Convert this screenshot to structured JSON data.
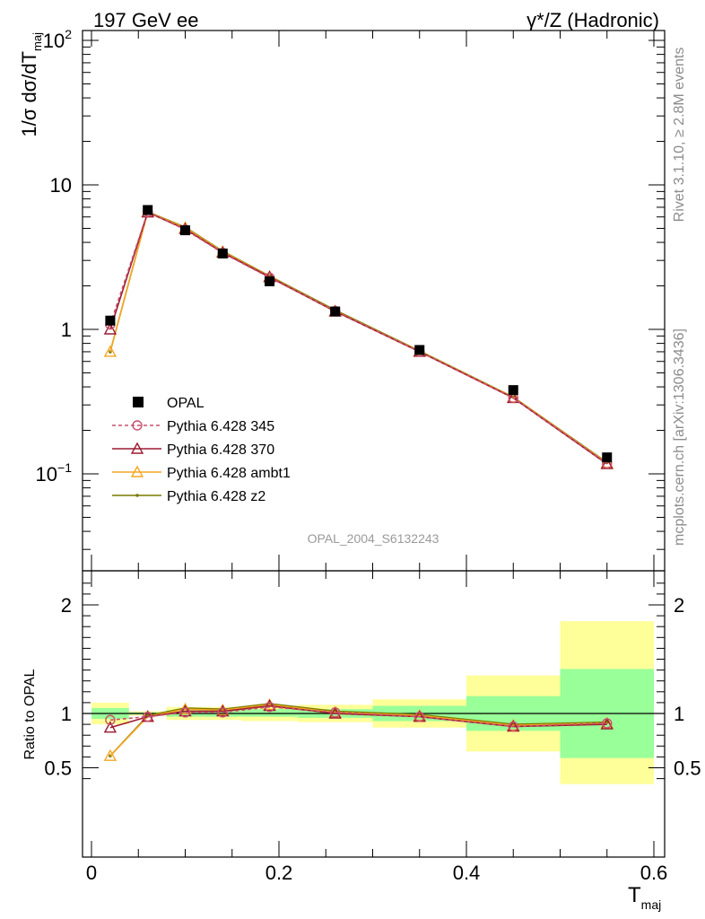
{
  "header": {
    "left": "197 GeV ee",
    "right": "γ*/Z (Hadronic)"
  },
  "side_text": {
    "rivet": "Rivet 3.1.10, ≥ 2.8M events",
    "mcplots": "mcplots.cern.ch [arXiv:1306.3436]"
  },
  "analysis_id": "OPAL_2004_S6132243",
  "chart_data": [
    {
      "panel": "main",
      "type": "line",
      "ylabel_main": "1/σ dσ/dT",
      "ylabel_sub": "maj",
      "yscale": "log",
      "ylim": [
        0.025,
        120
      ],
      "xlim": [
        -0.02,
        0.6
      ],
      "yticks": [
        {
          "value": 100,
          "base": "10",
          "exp": "2"
        },
        {
          "value": 10,
          "base": "10",
          "exp": ""
        },
        {
          "value": 1,
          "base": "1",
          "exp": ""
        },
        {
          "value": 0.1,
          "base": "10",
          "exp": "−1"
        }
      ],
      "legend_position": "middle-left",
      "data": {
        "name": "OPAL",
        "x": [
          0.02,
          0.06,
          0.1,
          0.14,
          0.19,
          0.26,
          0.35,
          0.45,
          0.55
        ],
        "y": [
          1.15,
          6.7,
          4.85,
          3.35,
          2.15,
          1.33,
          0.72,
          0.38,
          0.13
        ],
        "bin_edges": [
          0.0,
          0.04,
          0.08,
          0.12,
          0.16,
          0.22,
          0.3,
          0.4,
          0.5,
          0.6
        ]
      },
      "series": [
        {
          "name": "Pythia 6.428 345",
          "color": "#c8506e",
          "dash": "4,3",
          "marker": "circle",
          "y": [
            1.08,
            6.5,
            4.9,
            3.38,
            2.28,
            1.34,
            0.7,
            0.335,
            0.118
          ]
        },
        {
          "name": "Pythia 6.428 370",
          "color": "#9b1b30",
          "dash": "",
          "marker": "triangle",
          "y": [
            1.0,
            6.45,
            4.95,
            3.4,
            2.3,
            1.33,
            0.7,
            0.335,
            0.117
          ]
        },
        {
          "name": "Pythia 6.428 ambt1",
          "color": "#f5a623",
          "dash": "",
          "marker": "triangle",
          "y": [
            0.7,
            6.48,
            5.05,
            3.45,
            2.32,
            1.34,
            0.705,
            0.338,
            0.119
          ]
        },
        {
          "name": "Pythia 6.428 z2",
          "color": "#7a7a00",
          "dash": "",
          "marker": "dot",
          "y": [
            0.7,
            6.52,
            5.1,
            3.48,
            2.34,
            1.36,
            0.71,
            0.34,
            0.12
          ]
        }
      ]
    },
    {
      "panel": "ratio",
      "type": "line",
      "ylabel": "Ratio to OPAL",
      "xlabel_main": "T",
      "xlabel_sub": "maj",
      "ylim": [
        0.35,
        2.25
      ],
      "xlim": [
        -0.02,
        0.6
      ],
      "xticks": [
        "0",
        "0.2",
        "0.4",
        "0.6"
      ],
      "yticks": [
        "0.5",
        "1",
        "2"
      ],
      "bands": {
        "bin_edges": [
          0.0,
          0.04,
          0.08,
          0.12,
          0.16,
          0.22,
          0.3,
          0.4,
          0.5,
          0.6
        ],
        "green_low": [
          0.95,
          0.99,
          0.97,
          0.97,
          0.97,
          0.96,
          0.93,
          0.84,
          0.59
        ],
        "green_high": [
          1.05,
          1.01,
          1.03,
          1.03,
          1.04,
          1.04,
          1.07,
          1.16,
          1.41
        ],
        "yellow_low": [
          0.9,
          0.98,
          0.94,
          0.94,
          0.93,
          0.92,
          0.87,
          0.65,
          0.35
        ],
        "yellow_high": [
          1.1,
          1.02,
          1.06,
          1.06,
          1.07,
          1.08,
          1.13,
          1.35,
          1.85
        ]
      },
      "x": [
        0.02,
        0.06,
        0.1,
        0.14,
        0.19,
        0.26,
        0.35,
        0.45,
        0.55
      ],
      "series": [
        {
          "name": "Pythia 6.428 345",
          "y": [
            0.94,
            0.97,
            1.01,
            1.01,
            1.06,
            1.01,
            0.97,
            0.88,
            0.91
          ]
        },
        {
          "name": "Pythia 6.428 370",
          "y": [
            0.87,
            0.97,
            1.02,
            1.02,
            1.07,
            1.0,
            0.97,
            0.88,
            0.9
          ]
        },
        {
          "name": "Pythia 6.428 ambt1",
          "y": [
            0.61,
            0.97,
            1.04,
            1.03,
            1.08,
            1.01,
            0.98,
            0.89,
            0.91
          ]
        },
        {
          "name": "Pythia 6.428 z2",
          "y": [
            0.61,
            0.98,
            1.05,
            1.04,
            1.09,
            1.02,
            0.99,
            0.9,
            0.92
          ]
        }
      ]
    }
  ]
}
